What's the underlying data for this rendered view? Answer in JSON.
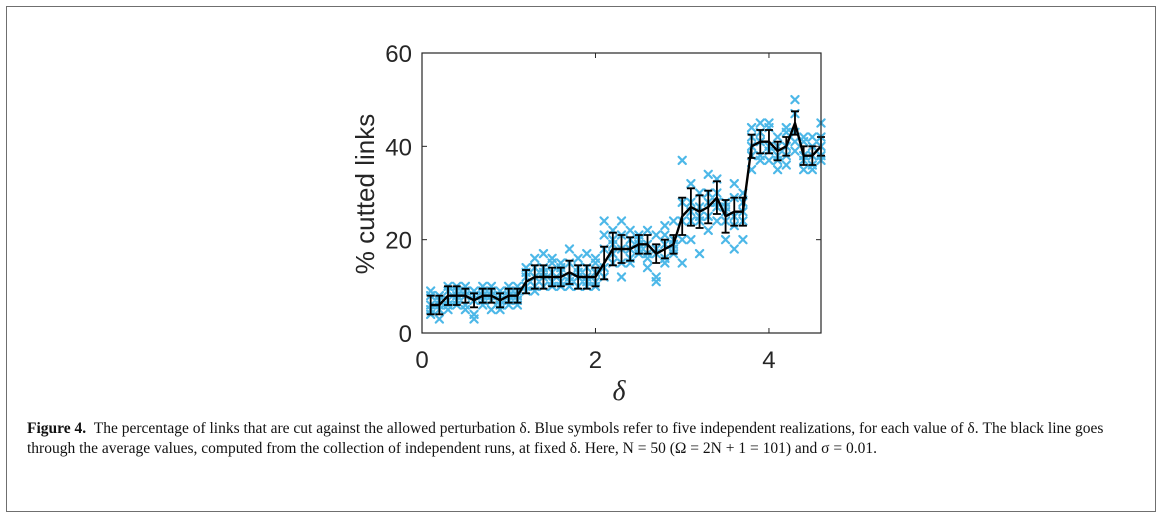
{
  "chart_data": {
    "type": "scatter",
    "title": "",
    "xlabel": "δ",
    "ylabel": "% cutted links",
    "xlim": [
      0,
      4.6
    ],
    "ylim": [
      0,
      60
    ],
    "xticks": [
      0,
      2,
      4
    ],
    "yticks": [
      0,
      20,
      40,
      60
    ],
    "grid": false,
    "legend": "none",
    "colors": {
      "scatter": "#4db8e8",
      "mean": "#000000",
      "axes": "#262626"
    },
    "scatter_marker": "x",
    "series": [
      {
        "style": "scatter",
        "points": [
          [
            0.1,
            8
          ],
          [
            0.1,
            5
          ],
          [
            0.1,
            6
          ],
          [
            0.1,
            4
          ],
          [
            0.1,
            9
          ],
          [
            0.2,
            7
          ],
          [
            0.2,
            3
          ],
          [
            0.2,
            6
          ],
          [
            0.2,
            5
          ],
          [
            0.2,
            8
          ],
          [
            0.3,
            10
          ],
          [
            0.3,
            7
          ],
          [
            0.3,
            9
          ],
          [
            0.3,
            6
          ],
          [
            0.3,
            5
          ],
          [
            0.4,
            7
          ],
          [
            0.4,
            10
          ],
          [
            0.4,
            8
          ],
          [
            0.4,
            6
          ],
          [
            0.4,
            9
          ],
          [
            0.5,
            6
          ],
          [
            0.5,
            10
          ],
          [
            0.5,
            8
          ],
          [
            0.5,
            5
          ],
          [
            0.5,
            9
          ],
          [
            0.6,
            9
          ],
          [
            0.6,
            4
          ],
          [
            0.6,
            7
          ],
          [
            0.6,
            3
          ],
          [
            0.6,
            8
          ],
          [
            0.7,
            7
          ],
          [
            0.7,
            10
          ],
          [
            0.7,
            6
          ],
          [
            0.7,
            9
          ],
          [
            0.7,
            8
          ],
          [
            0.8,
            10
          ],
          [
            0.8,
            8
          ],
          [
            0.8,
            7
          ],
          [
            0.8,
            5
          ],
          [
            0.8,
            9
          ],
          [
            0.9,
            8
          ],
          [
            0.9,
            6
          ],
          [
            0.9,
            7
          ],
          [
            0.9,
            9
          ],
          [
            0.9,
            5
          ],
          [
            1.0,
            6
          ],
          [
            1.0,
            7
          ],
          [
            1.0,
            10
          ],
          [
            1.0,
            9
          ],
          [
            1.0,
            8
          ],
          [
            1.1,
            6
          ],
          [
            1.1,
            9
          ],
          [
            1.1,
            7
          ],
          [
            1.1,
            8
          ],
          [
            1.1,
            10
          ],
          [
            1.2,
            14
          ],
          [
            1.2,
            9
          ],
          [
            1.2,
            12
          ],
          [
            1.2,
            10
          ],
          [
            1.2,
            13
          ],
          [
            1.3,
            16
          ],
          [
            1.3,
            12
          ],
          [
            1.3,
            10
          ],
          [
            1.3,
            14
          ],
          [
            1.3,
            9
          ],
          [
            1.4,
            17
          ],
          [
            1.4,
            10
          ],
          [
            1.4,
            12
          ],
          [
            1.4,
            14
          ],
          [
            1.4,
            13
          ],
          [
            1.5,
            16
          ],
          [
            1.5,
            10
          ],
          [
            1.5,
            13
          ],
          [
            1.5,
            15
          ],
          [
            1.5,
            11
          ],
          [
            1.6,
            15
          ],
          [
            1.6,
            11
          ],
          [
            1.6,
            13
          ],
          [
            1.6,
            10
          ],
          [
            1.6,
            14
          ],
          [
            1.7,
            18
          ],
          [
            1.7,
            12
          ],
          [
            1.7,
            10
          ],
          [
            1.7,
            15
          ],
          [
            1.7,
            11
          ],
          [
            1.8,
            16
          ],
          [
            1.8,
            12
          ],
          [
            1.8,
            10
          ],
          [
            1.8,
            13
          ],
          [
            1.8,
            14
          ],
          [
            1.9,
            17
          ],
          [
            1.9,
            12
          ],
          [
            1.9,
            10
          ],
          [
            1.9,
            14
          ],
          [
            1.9,
            11
          ],
          [
            2.0,
            15
          ],
          [
            2.0,
            13
          ],
          [
            2.0,
            11
          ],
          [
            2.0,
            16
          ],
          [
            2.0,
            10
          ],
          [
            2.1,
            24
          ],
          [
            2.1,
            14
          ],
          [
            2.1,
            18
          ],
          [
            2.1,
            21
          ],
          [
            2.1,
            12
          ],
          [
            2.2,
            22
          ],
          [
            2.2,
            15
          ],
          [
            2.2,
            20
          ],
          [
            2.2,
            17
          ],
          [
            2.2,
            19
          ],
          [
            2.3,
            24
          ],
          [
            2.3,
            12
          ],
          [
            2.3,
            18
          ],
          [
            2.3,
            21
          ],
          [
            2.3,
            15
          ],
          [
            2.4,
            22
          ],
          [
            2.4,
            16
          ],
          [
            2.4,
            20
          ],
          [
            2.4,
            15
          ],
          [
            2.4,
            18
          ],
          [
            2.5,
            20
          ],
          [
            2.5,
            17
          ],
          [
            2.5,
            19
          ],
          [
            2.5,
            21
          ],
          [
            2.5,
            18
          ],
          [
            2.6,
            19
          ],
          [
            2.6,
            14
          ],
          [
            2.6,
            22
          ],
          [
            2.6,
            17
          ],
          [
            2.6,
            16
          ],
          [
            2.7,
            21
          ],
          [
            2.7,
            11
          ],
          [
            2.7,
            17
          ],
          [
            2.7,
            12
          ],
          [
            2.7,
            18
          ],
          [
            2.8,
            23
          ],
          [
            2.8,
            15
          ],
          [
            2.8,
            19
          ],
          [
            2.8,
            16
          ],
          [
            2.8,
            21
          ],
          [
            2.9,
            24
          ],
          [
            2.9,
            18
          ],
          [
            2.9,
            20
          ],
          [
            2.9,
            17
          ],
          [
            2.9,
            19
          ],
          [
            3.0,
            37
          ],
          [
            3.0,
            15
          ],
          [
            3.0,
            24
          ],
          [
            3.0,
            20
          ],
          [
            3.0,
            28
          ],
          [
            3.1,
            32
          ],
          [
            3.1,
            20
          ],
          [
            3.1,
            26
          ],
          [
            3.1,
            24
          ],
          [
            3.1,
            28
          ],
          [
            3.2,
            30
          ],
          [
            3.2,
            17
          ],
          [
            3.2,
            25
          ],
          [
            3.2,
            27
          ],
          [
            3.2,
            24
          ],
          [
            3.3,
            34
          ],
          [
            3.3,
            22
          ],
          [
            3.3,
            28
          ],
          [
            3.3,
            25
          ],
          [
            3.3,
            30
          ],
          [
            3.4,
            30
          ],
          [
            3.4,
            24
          ],
          [
            3.4,
            28
          ],
          [
            3.4,
            33
          ],
          [
            3.4,
            27
          ],
          [
            3.5,
            28
          ],
          [
            3.5,
            20
          ],
          [
            3.5,
            24
          ],
          [
            3.5,
            27
          ],
          [
            3.5,
            26
          ],
          [
            3.6,
            32
          ],
          [
            3.6,
            18
          ],
          [
            3.6,
            25
          ],
          [
            3.6,
            29
          ],
          [
            3.6,
            23
          ],
          [
            3.7,
            30
          ],
          [
            3.7,
            20
          ],
          [
            3.7,
            26
          ],
          [
            3.7,
            24
          ],
          [
            3.7,
            28
          ],
          [
            3.8,
            44
          ],
          [
            3.8,
            35
          ],
          [
            3.8,
            38
          ],
          [
            3.8,
            42
          ],
          [
            3.8,
            40
          ],
          [
            3.9,
            45
          ],
          [
            3.9,
            38
          ],
          [
            3.9,
            41
          ],
          [
            3.9,
            43
          ],
          [
            3.9,
            37
          ],
          [
            4.0,
            45
          ],
          [
            4.0,
            37
          ],
          [
            4.0,
            39
          ],
          [
            4.0,
            44
          ],
          [
            4.0,
            40
          ],
          [
            4.1,
            42
          ],
          [
            4.1,
            35
          ],
          [
            4.1,
            38
          ],
          [
            4.1,
            40
          ],
          [
            4.1,
            37
          ],
          [
            4.2,
            44
          ],
          [
            4.2,
            38
          ],
          [
            4.2,
            40
          ],
          [
            4.2,
            43
          ],
          [
            4.2,
            36
          ],
          [
            4.3,
            50
          ],
          [
            4.3,
            39
          ],
          [
            4.3,
            43
          ],
          [
            4.3,
            47
          ],
          [
            4.3,
            41
          ],
          [
            4.4,
            42
          ],
          [
            4.4,
            35
          ],
          [
            4.4,
            38
          ],
          [
            4.4,
            41
          ],
          [
            4.4,
            37
          ],
          [
            4.5,
            42
          ],
          [
            4.5,
            36
          ],
          [
            4.5,
            38
          ],
          [
            4.5,
            40
          ],
          [
            4.5,
            35
          ],
          [
            4.6,
            45
          ],
          [
            4.6,
            37
          ],
          [
            4.6,
            40
          ],
          [
            4.6,
            42
          ],
          [
            4.6,
            38
          ]
        ]
      },
      {
        "style": "line-errorbar",
        "x": [
          0.1,
          0.2,
          0.3,
          0.4,
          0.5,
          0.6,
          0.7,
          0.8,
          0.9,
          1.0,
          1.1,
          1.2,
          1.3,
          1.4,
          1.5,
          1.6,
          1.7,
          1.8,
          1.9,
          2.0,
          2.1,
          2.2,
          2.3,
          2.4,
          2.5,
          2.6,
          2.7,
          2.8,
          2.9,
          3.0,
          3.1,
          3.2,
          3.3,
          3.4,
          3.5,
          3.6,
          3.7,
          3.8,
          3.9,
          4.0,
          4.1,
          4.2,
          4.3,
          4.4,
          4.5,
          4.6
        ],
        "y": [
          6,
          6,
          8,
          8,
          8,
          7,
          8,
          8,
          7,
          8,
          8,
          11,
          12,
          12,
          12,
          12,
          13,
          12,
          12,
          12,
          15,
          18,
          18,
          18,
          19,
          19,
          17,
          18,
          19,
          25,
          27,
          26,
          27,
          29,
          25,
          26,
          26,
          40,
          41,
          41,
          39,
          40,
          45,
          38,
          38,
          40
        ],
        "err": [
          2,
          2,
          2,
          2,
          1.5,
          1.5,
          1.5,
          1.5,
          1.5,
          1.5,
          1.5,
          2.5,
          2.5,
          2.5,
          2,
          2,
          2.5,
          2.5,
          2.5,
          2,
          3.5,
          3.5,
          3,
          2.5,
          2,
          2,
          2,
          2,
          2,
          4,
          4,
          3.5,
          3.5,
          3.5,
          3.5,
          3,
          3,
          2.5,
          2.5,
          2.5,
          2,
          2,
          2.5,
          2,
          2,
          2
        ]
      }
    ]
  },
  "caption": {
    "label": "Figure 4.",
    "text": "The percentage of links that are cut against the allowed perturbation δ. Blue symbols refer to five independent realizations, for each value of δ. The black line goes through the average values, computed from the collection of independent runs, at fixed δ. Here, N = 50 (Ω = 2N + 1 = 101) and σ = 0.01."
  }
}
